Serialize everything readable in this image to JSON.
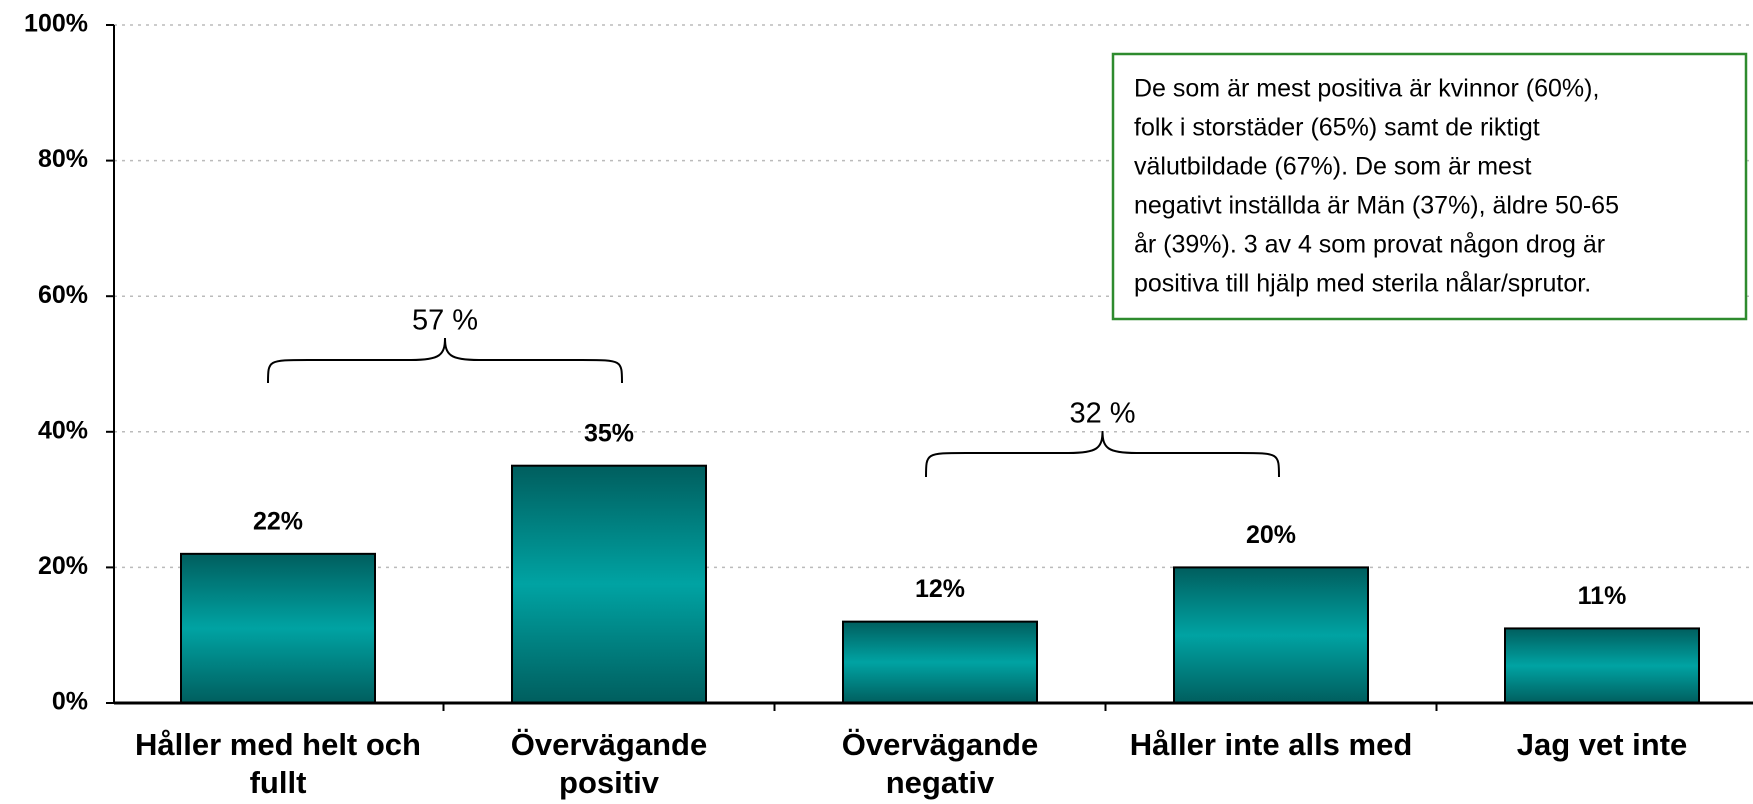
{
  "chart_data": {
    "type": "bar",
    "categories": [
      "Håller med helt och fullt",
      "Övervägande positiv",
      "Övervägande negativ",
      "Håller inte alls med",
      "Jag vet inte"
    ],
    "values": [
      22,
      35,
      12,
      20,
      11
    ],
    "value_labels": [
      "22%",
      "35%",
      "12%",
      "20%",
      "11%"
    ],
    "color": "#009999",
    "ylim": [
      0,
      100
    ],
    "yticks": [
      {
        "value": 0,
        "label": "0%"
      },
      {
        "value": 20,
        "label": "20%"
      },
      {
        "value": 40,
        "label": "40%"
      },
      {
        "value": 60,
        "label": "60%"
      },
      {
        "value": 80,
        "label": "80%"
      },
      {
        "value": 100,
        "label": "100%"
      }
    ],
    "grid": true,
    "annotations": [
      {
        "text": "57 %"
      },
      {
        "text": "32 %"
      }
    ],
    "note": [
      "De som är mest positiva är kvinnor (60%),",
      "folk i storstäder (65%) samt de riktigt",
      "välutbildade (67%). De som är mest",
      "negativt inställda är Män (37%), äldre 50-65",
      "år (39%). 3 av 4 som provat någon drog är",
      "positiva till hjälp med sterila nålar/sprutor."
    ]
  }
}
